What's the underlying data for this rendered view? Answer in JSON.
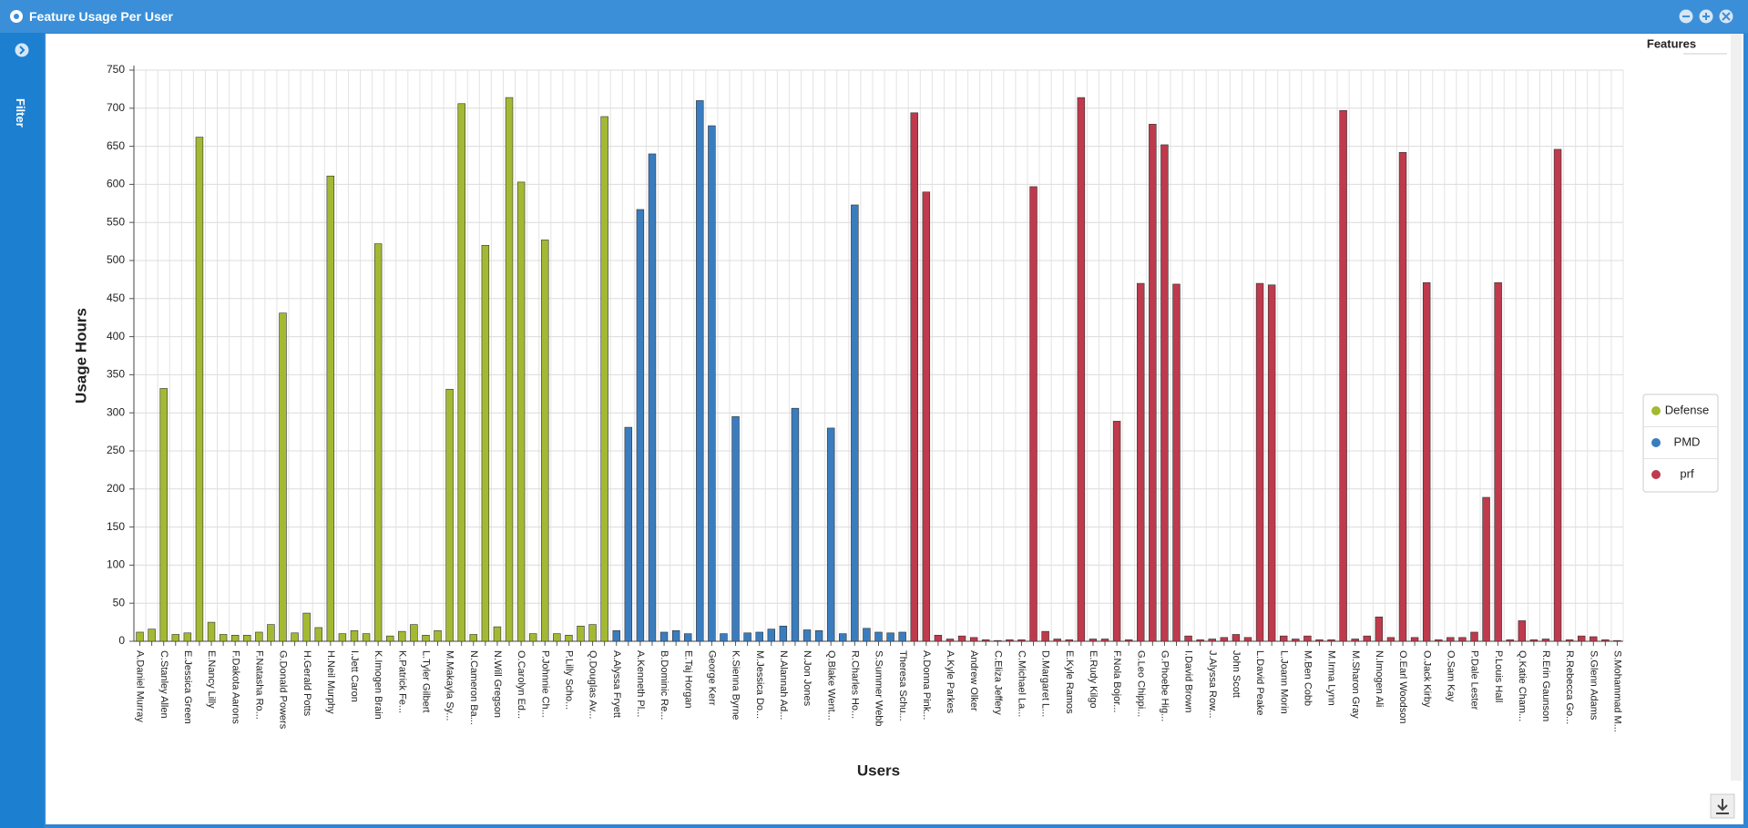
{
  "window": {
    "title": "Feature Usage Per User",
    "filter_label": "Filter",
    "legend_title": "Features"
  },
  "chart_data": {
    "type": "bar",
    "xlabel": "Users",
    "ylabel": "Usage Hours",
    "categories": [
      "A.Daniel Murray",
      null,
      "C.Stanley Allen",
      null,
      "E.Jessica Green",
      null,
      "E.Nancy Lilly",
      null,
      "F.Dakota Aarons",
      null,
      "F.Natasha Ro...",
      null,
      "G.Donald Powers",
      null,
      "H.Gerald Potts",
      null,
      "H.Neil Murphy",
      null,
      "I.Jett Caron",
      null,
      "K.Imogen Brain",
      null,
      "K.Patrick Fe...",
      null,
      "L.Tyler Gilbert",
      null,
      "M.Makayla Sy...",
      null,
      "N.Cameron Ba...",
      null,
      "N.Will Gregson",
      null,
      "O.Carolyn Ed...",
      null,
      "P.Johnnie Ch...",
      null,
      "P.Lilly Scho...",
      null,
      "Q.Douglas Av...",
      null,
      "A.Alyssa Fryett",
      null,
      "A.Kenneth Pl...",
      null,
      "B.Dominic Re...",
      null,
      "E.Taj Horgan",
      null,
      "George Kerr",
      null,
      "K.Sienna Byrne",
      null,
      "M.Jessica Do...",
      null,
      "N.Alannah Ad...",
      null,
      "N.Jon Jones",
      null,
      "Q.Blake Went...",
      null,
      "R.Charles Ho...",
      null,
      "S.Summer Webb",
      null,
      "Theresa Schu...",
      null,
      "A.Donna Pink...",
      null,
      "A.Kyle Parkes",
      null,
      "Andrew Olker",
      null,
      "C.Eliza Jeffery",
      null,
      "C.Michael La...",
      null,
      "D.Margaret L...",
      null,
      "E.Kyle Ramos",
      null,
      "E.Rudy Kilgo",
      null,
      "F.Nola Bojor...",
      null,
      "G.Leo Chippi...",
      null,
      "G.Phoebe Hig...",
      null,
      "I.David Brown",
      null,
      "J.Alyssa Row...",
      null,
      "John Scott",
      null,
      "L.David Peake",
      null,
      "L.Joann Morin",
      null,
      "M.Ben Cobb",
      null,
      "M.Irma Lynn",
      null,
      "M.Sharon Gray",
      null,
      "N.Imogen Ali",
      null,
      "O.Earl Woodson",
      null,
      "O.Jack Kirby",
      null,
      "O.Sam Kay",
      null,
      "P.Dale Lester",
      null,
      "P.Louis Hall",
      null,
      "Q.Katie Cham...",
      null,
      "R.Erin Gaunson",
      null,
      "R.Rebecca Go...",
      null,
      "S.Glenn Adams",
      null,
      "S.Mohammad M..."
    ],
    "series": [
      {
        "name": "Defense",
        "color": "#a4b933",
        "values": [
          12,
          16,
          332,
          9,
          11,
          662,
          25,
          9,
          8,
          8,
          12,
          22,
          431,
          11,
          37,
          18,
          611,
          10,
          14,
          10,
          522,
          7,
          13,
          22,
          8,
          14,
          331,
          706,
          9,
          520,
          19,
          714,
          603,
          10,
          527,
          10,
          8,
          20,
          22,
          689,
          null,
          null,
          null,
          null,
          null,
          null,
          null,
          null,
          null,
          null,
          null,
          null,
          null,
          null,
          null,
          null,
          null,
          null,
          null,
          null,
          null,
          null,
          null,
          null,
          null,
          null,
          null,
          null,
          null,
          null,
          null,
          null,
          null,
          null,
          null,
          null,
          null,
          null,
          null,
          null,
          null,
          null,
          null,
          null,
          null,
          null,
          null,
          null,
          null,
          null,
          null,
          null,
          null,
          null,
          null,
          null,
          null,
          null,
          null,
          null,
          null,
          null,
          null,
          null,
          null,
          null,
          null,
          null,
          null,
          null,
          null,
          null,
          null,
          null,
          null,
          null,
          null,
          null,
          null,
          null,
          null,
          null,
          null,
          null,
          null
        ]
      },
      {
        "name": "PMD",
        "color": "#3a7dbf",
        "values": [
          null,
          null,
          null,
          null,
          null,
          null,
          null,
          null,
          null,
          null,
          null,
          null,
          null,
          null,
          null,
          null,
          null,
          null,
          null,
          null,
          null,
          null,
          null,
          null,
          null,
          null,
          null,
          null,
          null,
          null,
          null,
          null,
          null,
          null,
          null,
          null,
          null,
          null,
          null,
          null,
          14,
          281,
          567,
          640,
          12,
          14,
          10,
          710,
          677,
          10,
          295,
          11,
          12,
          16,
          20,
          306,
          15,
          14,
          280,
          10,
          573,
          17,
          12,
          11,
          12,
          null,
          null,
          null,
          null,
          null,
          null,
          null,
          null,
          null,
          null,
          null,
          null,
          null,
          null,
          null,
          null,
          null,
          null,
          null,
          null,
          null,
          null,
          null,
          null,
          null,
          null,
          null,
          null,
          null,
          null,
          null,
          null,
          null,
          null,
          null,
          null,
          null,
          null,
          null,
          null,
          null,
          null,
          null,
          null,
          null,
          null,
          null,
          null,
          null,
          null,
          null,
          null,
          null,
          null,
          null,
          null,
          null,
          null,
          null,
          null
        ]
      },
      {
        "name": "prf",
        "color": "#be3a4c",
        "values": [
          null,
          null,
          null,
          null,
          null,
          null,
          null,
          null,
          null,
          null,
          null,
          null,
          null,
          null,
          null,
          null,
          null,
          null,
          null,
          null,
          null,
          null,
          null,
          null,
          null,
          null,
          null,
          null,
          null,
          null,
          null,
          null,
          null,
          null,
          null,
          null,
          null,
          null,
          null,
          null,
          null,
          null,
          null,
          null,
          null,
          null,
          null,
          null,
          null,
          null,
          null,
          null,
          null,
          null,
          null,
          null,
          null,
          null,
          null,
          null,
          null,
          null,
          null,
          null,
          null,
          694,
          590,
          8,
          3,
          7,
          5,
          2,
          1,
          2,
          2,
          597,
          13,
          3,
          2,
          714,
          3,
          3,
          289,
          2,
          470,
          679,
          652,
          469,
          7,
          2,
          3,
          5,
          9,
          5,
          470,
          468,
          7,
          3,
          7,
          2,
          2,
          697,
          3,
          7,
          32,
          5,
          642,
          5,
          471,
          2,
          5,
          5,
          12,
          189,
          471,
          2,
          27,
          2,
          3,
          646,
          2,
          7,
          6,
          2,
          1
        ]
      }
    ],
    "ylim": [
      0,
      750
    ],
    "yticks": [
      0,
      50,
      100,
      150,
      200,
      250,
      300,
      350,
      400,
      450,
      500,
      550,
      600,
      650,
      700,
      750
    ],
    "grid": true,
    "legend": "right"
  }
}
